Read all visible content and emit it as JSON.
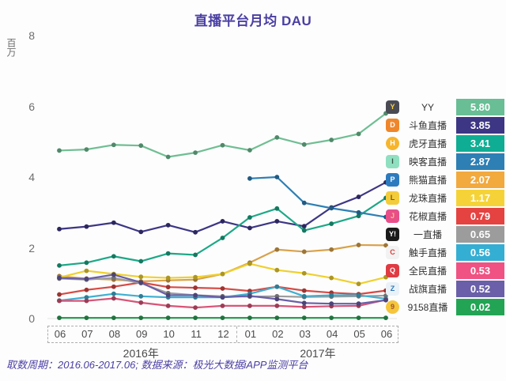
{
  "title": "直播平台月均 DAU",
  "footer": "取数周期：2016.06-2017.06; 数据来源：极光大数据iAPP监测平台",
  "y_axis": {
    "unit_label": "百万",
    "ticks": [
      8,
      6,
      4,
      2,
      0
    ]
  },
  "x_axis": {
    "months": [
      "06",
      "07",
      "08",
      "09",
      "10",
      "11",
      "12",
      "01",
      "02",
      "03",
      "04",
      "05",
      "06"
    ],
    "year_groups": [
      {
        "label": "2016年",
        "start": 0,
        "end": 6
      },
      {
        "label": "2017年",
        "start": 7,
        "end": 12
      }
    ]
  },
  "chart_data": {
    "type": "line",
    "title": "直播平台月均 DAU",
    "xlabel": "",
    "ylabel": "百万",
    "ylim": [
      0,
      8
    ],
    "grid": false,
    "legend_position": "right",
    "x": [
      "2016-06",
      "2016-07",
      "2016-08",
      "2016-09",
      "2016-10",
      "2016-11",
      "2016-12",
      "2017-01",
      "2017-02",
      "2017-03",
      "2017-04",
      "2017-05",
      "2017-06"
    ],
    "series": [
      {
        "name": "YY",
        "final": "5.80",
        "line_color": "#6FBE93",
        "badge_color": "#69BE95",
        "icon": {
          "name": "yy-app-icon",
          "glyph": "Y",
          "bg": "#4A4A55",
          "fg": "#F7D24A",
          "shape": "square"
        },
        "values": [
          4.75,
          4.78,
          4.91,
          4.89,
          4.57,
          4.69,
          4.9,
          4.76,
          5.12,
          4.92,
          5.05,
          5.22,
          5.8
        ]
      },
      {
        "name": "斗鱼直播",
        "final": "3.85",
        "line_color": "#3D3684",
        "badge_color": "#3D3684",
        "icon": {
          "name": "douyu-app-icon",
          "glyph": "D",
          "bg": "#F0862B",
          "fg": "#FFFFFF",
          "shape": "square"
        },
        "values": [
          2.53,
          2.6,
          2.71,
          2.45,
          2.64,
          2.44,
          2.75,
          2.56,
          2.75,
          2.61,
          3.14,
          3.44,
          3.85
        ]
      },
      {
        "name": "虎牙直播",
        "final": "3.41",
        "line_color": "#1CA886",
        "badge_color": "#0FAD93",
        "icon": {
          "name": "huya-app-icon",
          "glyph": "H",
          "bg": "#F7B52C",
          "fg": "#FFFFFF",
          "shape": "circle"
        },
        "values": [
          1.5,
          1.58,
          1.76,
          1.62,
          1.84,
          1.8,
          2.28,
          2.86,
          3.11,
          2.49,
          2.68,
          2.9,
          3.41
        ]
      },
      {
        "name": "映客直播",
        "final": "2.87",
        "line_color": "#2E7FB4",
        "badge_color": "#2E7FB4",
        "icon": {
          "name": "inke-app-icon",
          "glyph": "I",
          "bg": "#8FE0C0",
          "fg": "#335544",
          "shape": "square"
        },
        "values": [
          null,
          null,
          null,
          null,
          null,
          null,
          null,
          3.96,
          4.0,
          3.27,
          3.12,
          3.0,
          2.87
        ]
      },
      {
        "name": "熊猫直播",
        "final": "2.07",
        "line_color": "#D8A24C",
        "badge_color": "#F2A93E",
        "icon": {
          "name": "panda-app-icon",
          "glyph": "P",
          "bg": "#2D7BBF",
          "fg": "#FFFFFF",
          "shape": "square"
        },
        "values": [
          1.2,
          1.13,
          1.1,
          1.05,
          1.08,
          1.1,
          1.26,
          1.58,
          1.95,
          1.89,
          1.95,
          2.08,
          2.07
        ]
      },
      {
        "name": "龙珠直播",
        "final": "1.17",
        "line_color": "#EFD02F",
        "badge_color": "#F5D338",
        "icon": {
          "name": "longzhu-app-icon",
          "glyph": "L",
          "bg": "#F3CC3C",
          "fg": "#7A5A12",
          "shape": "square"
        },
        "values": [
          1.16,
          1.35,
          1.26,
          1.18,
          1.15,
          1.17,
          1.26,
          1.55,
          1.37,
          1.28,
          1.15,
          0.98,
          1.17
        ]
      },
      {
        "name": "花椒直播",
        "final": "0.79",
        "line_color": "#D84A44",
        "badge_color": "#E44341",
        "icon": {
          "name": "huajiao-app-icon",
          "glyph": "J",
          "bg": "#E84E8A",
          "fg": "#F7D24A",
          "shape": "square"
        },
        "values": [
          0.68,
          0.81,
          0.9,
          1.02,
          0.89,
          0.87,
          0.85,
          0.78,
          0.9,
          0.79,
          0.73,
          0.69,
          0.79
        ]
      },
      {
        "name": "一直播",
        "final": "0.65",
        "line_color": "#9C9C9C",
        "badge_color": "#9C9C9C",
        "icon": {
          "name": "yizhibo-app-icon",
          "glyph": "Y!",
          "bg": "#1A1A1A",
          "fg": "#FFFFFF",
          "shape": "square"
        },
        "values": [
          1.13,
          1.1,
          1.15,
          1.0,
          0.72,
          0.66,
          0.63,
          0.62,
          0.63,
          0.61,
          0.62,
          0.63,
          0.65
        ]
      },
      {
        "name": "触手直播",
        "final": "0.56",
        "line_color": "#3FAFD0",
        "badge_color": "#35AED3",
        "icon": {
          "name": "chushou-app-icon",
          "glyph": "C",
          "bg": "#F2F2F2",
          "fg": "#D8403C",
          "shape": "square"
        },
        "values": [
          0.51,
          0.6,
          0.7,
          0.63,
          0.6,
          0.6,
          0.6,
          0.7,
          0.9,
          0.63,
          0.66,
          0.66,
          0.56
        ]
      },
      {
        "name": "全民直播",
        "final": "0.53",
        "line_color": "#D85477",
        "badge_color": "#EF5283",
        "icon": {
          "name": "quanmin-app-icon",
          "glyph": "Q",
          "bg": "#E03B43",
          "fg": "#FFFFFF",
          "shape": "square"
        },
        "values": [
          0.5,
          0.5,
          0.57,
          0.45,
          0.36,
          0.31,
          0.36,
          0.36,
          0.36,
          0.33,
          0.35,
          0.36,
          0.53
        ]
      },
      {
        "name": "战旗直播",
        "final": "0.52",
        "line_color": "#6A5FA8",
        "badge_color": "#6A5FA8",
        "icon": {
          "name": "zhanqi-app-icon",
          "glyph": "Z",
          "bg": "#EAF2F8",
          "fg": "#2E78B8",
          "shape": "square"
        },
        "values": [
          1.15,
          1.12,
          1.24,
          1.02,
          0.66,
          0.66,
          0.6,
          0.64,
          0.55,
          0.44,
          0.42,
          0.42,
          0.52
        ]
      },
      {
        "name": "9158直播",
        "final": "0.02",
        "line_color": "#2E9E57",
        "badge_color": "#23A455",
        "icon": {
          "name": "9158-app-icon",
          "glyph": "9",
          "bg": "#F5C53C",
          "fg": "#A0522D",
          "shape": "circle"
        },
        "values": [
          0.02,
          0.02,
          0.02,
          0.02,
          0.02,
          0.02,
          0.02,
          0.02,
          0.02,
          0.02,
          0.02,
          0.02,
          0.02
        ]
      }
    ]
  }
}
